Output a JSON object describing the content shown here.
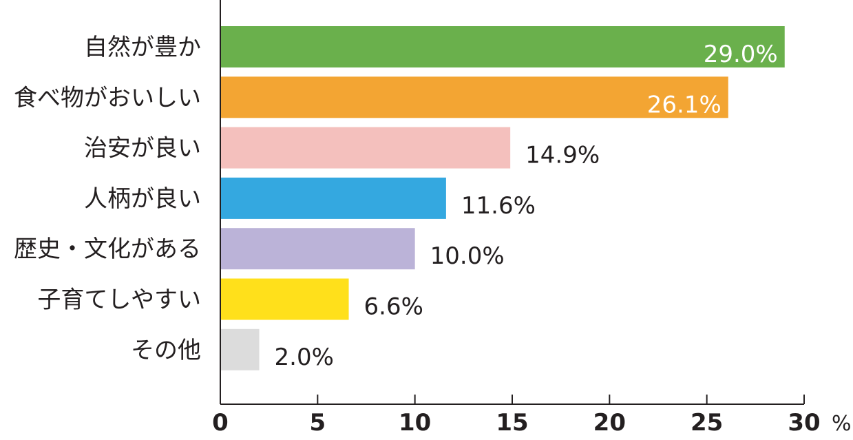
{
  "chart_data": {
    "type": "bar",
    "orientation": "horizontal",
    "title": "",
    "xlabel": "",
    "ylabel": "",
    "unit": "%",
    "xlim": [
      0,
      30
    ],
    "xticks": [
      0,
      5,
      10,
      15,
      20,
      25,
      30
    ],
    "grid": false,
    "legend": "none",
    "categories": [
      "自然が豊か",
      "食べ物がおいしい",
      "治安が良い",
      "人柄が良い",
      "歴史・文化がある",
      "子育てしやすい",
      "その他"
    ],
    "values": [
      29.0,
      26.1,
      14.9,
      11.6,
      10.0,
      6.6,
      2.0
    ],
    "value_labels": [
      "29.0%",
      "26.1%",
      "14.9%",
      "11.6%",
      "10.0%",
      "6.6%",
      "2.0%"
    ],
    "colors": [
      "#6ab04c",
      "#f3a533",
      "#f4c0bd",
      "#34a8e0",
      "#bbb3d8",
      "#ffe01b",
      "#dcdcdc"
    ],
    "label_inside": [
      true,
      true,
      false,
      false,
      false,
      false,
      false
    ]
  }
}
